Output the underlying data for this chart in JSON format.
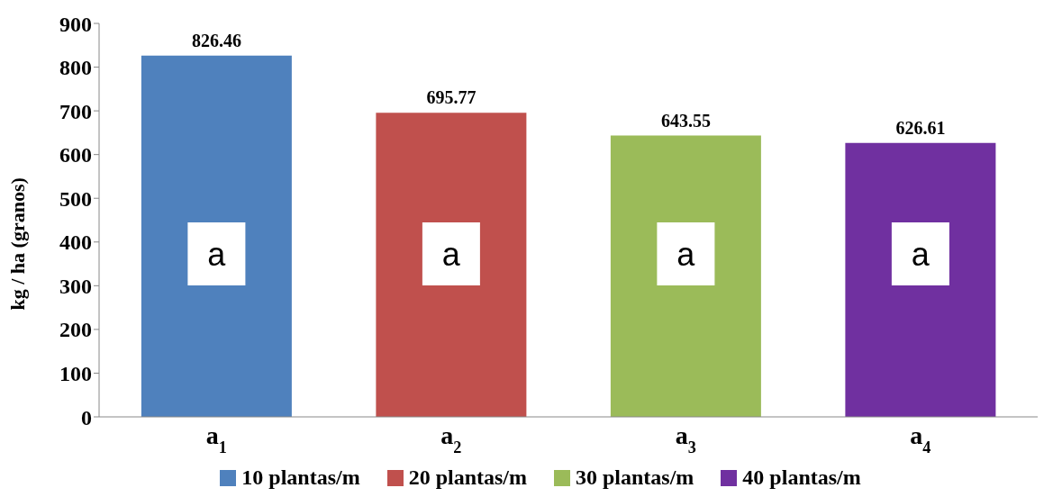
{
  "chart_data": {
    "type": "bar",
    "categories": [
      "a$_{1}$",
      "a$_{2}$",
      "a$_{3}$",
      "a$_{4}$"
    ],
    "series": [
      {
        "name": "10 plantas/m",
        "color": "#4f81bd",
        "values": [
          826.46,
          null,
          null,
          null
        ]
      },
      {
        "name": "20 plantas/m",
        "color": "#c0504d",
        "values": [
          null,
          695.77,
          null,
          null
        ]
      },
      {
        "name": "30 plantas/m",
        "color": "#9bbb59",
        "values": [
          null,
          null,
          643.55,
          null
        ]
      },
      {
        "name": "40 plantas/m",
        "color": "#7030a0",
        "values": [
          null,
          null,
          null,
          626.61
        ]
      }
    ],
    "ylabel": "kg / ha (granos)",
    "ylim": [
      0,
      900
    ],
    "yticks": [
      0,
      100,
      200,
      300,
      400,
      500,
      600,
      700,
      800,
      900
    ],
    "data_labels": true,
    "grid": false,
    "legend": "bottom",
    "annotations": [
      "a",
      "a",
      "a",
      "a"
    ]
  }
}
